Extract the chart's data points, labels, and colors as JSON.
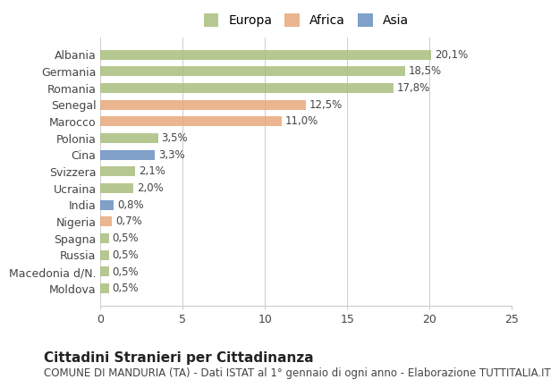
{
  "countries": [
    "Albania",
    "Germania",
    "Romania",
    "Senegal",
    "Marocco",
    "Polonia",
    "Cina",
    "Svizzera",
    "Ucraina",
    "India",
    "Nigeria",
    "Spagna",
    "Russia",
    "Macedonia d/N.",
    "Moldova"
  ],
  "values": [
    20.1,
    18.5,
    17.8,
    12.5,
    11.0,
    3.5,
    3.3,
    2.1,
    2.0,
    0.8,
    0.7,
    0.5,
    0.5,
    0.5,
    0.5
  ],
  "labels": [
    "20,1%",
    "18,5%",
    "17,8%",
    "12,5%",
    "11,0%",
    "3,5%",
    "3,3%",
    "2,1%",
    "2,0%",
    "0,8%",
    "0,7%",
    "0,5%",
    "0,5%",
    "0,5%",
    "0,5%"
  ],
  "continents": [
    "Europa",
    "Europa",
    "Europa",
    "Africa",
    "Africa",
    "Europa",
    "Asia",
    "Europa",
    "Europa",
    "Asia",
    "Africa",
    "Europa",
    "Europa",
    "Europa",
    "Europa"
  ],
  "colors": {
    "Europa": "#aabf7e",
    "Africa": "#e8a87c",
    "Asia": "#6a8fc0"
  },
  "legend_colors": {
    "Europa": "#aabf7e",
    "Africa": "#e8a87c",
    "Asia": "#6a8fc0"
  },
  "title": "Cittadini Stranieri per Cittadinanza",
  "subtitle": "COMUNE DI MANDURIA (TA) - Dati ISTAT al 1° gennaio di ogni anno - Elaborazione TUTTITALIA.IT",
  "xlim": [
    0,
    25
  ],
  "xticks": [
    0,
    5,
    10,
    15,
    20,
    25
  ],
  "background_color": "#ffffff",
  "bar_height": 0.6,
  "title_fontsize": 11,
  "subtitle_fontsize": 8.5,
  "tick_fontsize": 9,
  "label_fontsize": 8.5,
  "legend_fontsize": 10
}
